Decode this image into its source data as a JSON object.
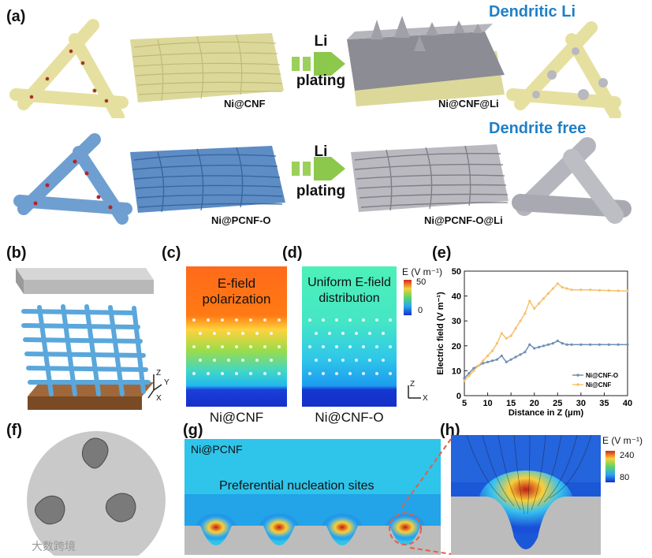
{
  "panels": {
    "a": "(a)",
    "b": "(b)",
    "c": "(c)",
    "d": "(d)",
    "e": "(e)",
    "f": "(f)",
    "g": "(g)",
    "h": "(h)"
  },
  "panel_a": {
    "row1_title": "Dendritic Li",
    "row2_title": "Dendrite free",
    "arrow_top": "Li",
    "arrow_bottom": "plating",
    "label_ni_cnf": "Ni@CNF",
    "label_ni_cnf_li": "Ni@CNF@Li",
    "label_ni_pcnf_o": "Ni@PCNF-O",
    "label_ni_pcnf_o_li": "Ni@PCNF-O@Li"
  },
  "panel_c": {
    "inner_text_1": "E-field",
    "inner_text_2": "polarization",
    "caption": "Ni@CNF"
  },
  "panel_d": {
    "inner_text_1": "Uniform E-field",
    "inner_text_2": "distribution",
    "caption": "Ni@CNF-O",
    "colorbar_title": "E (V m⁻¹)",
    "colorbar_max": "50",
    "colorbar_min": "0"
  },
  "panel_g": {
    "title": "Ni@PCNF",
    "annotation": "Preferential nucleation sites"
  },
  "panel_h": {
    "colorbar_title": "E (V m⁻¹)",
    "colorbar_max": "240",
    "colorbar_min": "80"
  },
  "axes_labels": {
    "z": "Z",
    "y": "Y",
    "x": "X"
  },
  "watermark": "大数跨境",
  "colors": {
    "title_blue": "#1f7fc6",
    "ni_cnf_series": "#f5c26b",
    "ni_cnf_o_series": "#6e8fb5",
    "fiber_yellow": "#e4df9a",
    "fiber_blue": "#5b8fc6"
  },
  "chart_data": {
    "type": "line",
    "xlabel": "Distance in Z (μm)",
    "ylabel": "Electric field (V m⁻¹)",
    "xlim": [
      5,
      40
    ],
    "ylim": [
      0,
      50
    ],
    "xticks": [
      "5",
      "10",
      "15",
      "20",
      "25",
      "30",
      "35",
      "40"
    ],
    "yticks": [
      "0",
      "10",
      "20",
      "30",
      "40",
      "50"
    ],
    "legend_position": "bottom-right",
    "series": [
      {
        "name": "Ni@CNF-O",
        "x": [
          5,
          6,
          7,
          8,
          9,
          10,
          11,
          12,
          13,
          14,
          15,
          16,
          17,
          18,
          19,
          20,
          21,
          22,
          23,
          24,
          25,
          26,
          27,
          28,
          30,
          32,
          34,
          36,
          38,
          40
        ],
        "y": [
          7,
          9,
          11,
          12,
          13,
          13.5,
          14,
          14.5,
          16,
          13.5,
          14.5,
          15.5,
          16.5,
          17.5,
          20.5,
          19,
          19.5,
          20,
          20.5,
          21,
          22,
          21,
          20.5,
          20.5,
          20.5,
          20.5,
          20.5,
          20.5,
          20.5,
          20.5
        ]
      },
      {
        "name": "Ni@CNF",
        "x": [
          5,
          6,
          7,
          8,
          9,
          10,
          11,
          12,
          13,
          14,
          15,
          16,
          17,
          18,
          19,
          20,
          21,
          22,
          23,
          24,
          25,
          26,
          27,
          28,
          30,
          32,
          34,
          36,
          38,
          40
        ],
        "y": [
          6,
          8,
          10,
          12,
          14,
          16,
          18,
          21,
          25,
          23,
          24,
          27,
          30,
          33,
          38,
          35,
          37,
          39,
          41,
          43,
          45,
          43.5,
          43,
          42.5,
          42.5,
          42.5,
          42.3,
          42.2,
          42.1,
          42
        ]
      }
    ]
  }
}
